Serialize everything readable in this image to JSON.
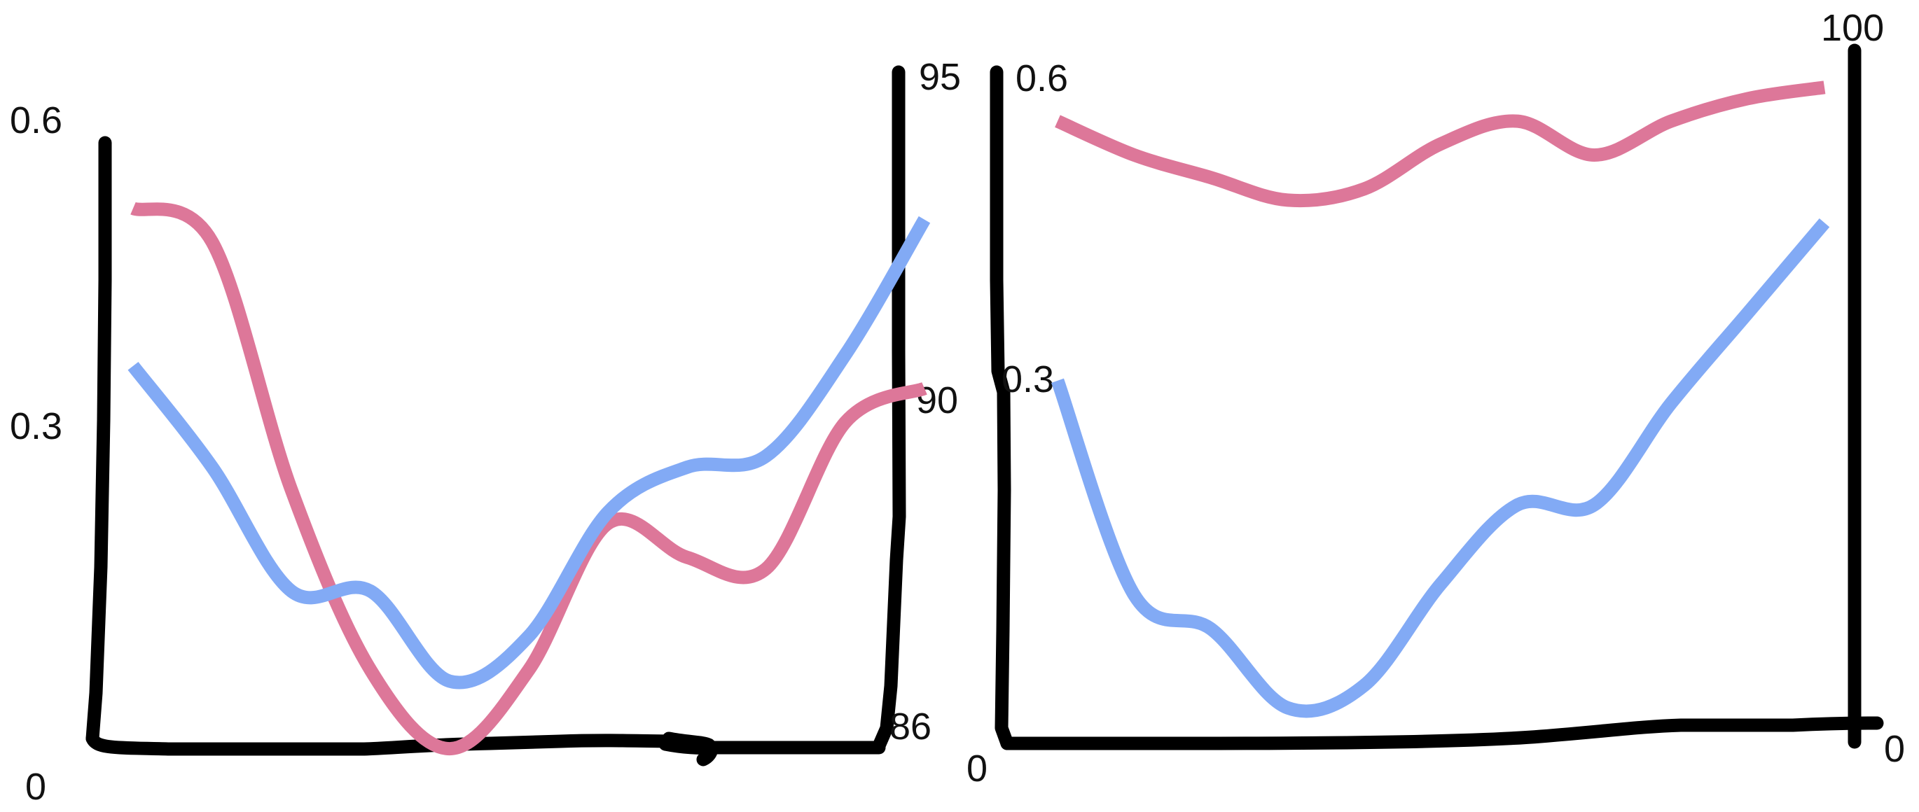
{
  "chart_data": [
    {
      "type": "line",
      "title": "",
      "style": "hand-drawn sketch, dual y-axes",
      "left_axis": {
        "ticks": [
          "0",
          "0.3",
          "0.6"
        ],
        "range": [
          0,
          0.6
        ]
      },
      "right_axis": {
        "ticks": [
          "86",
          "90",
          "95"
        ],
        "range": [
          86,
          95
        ]
      },
      "x": [
        0,
        1,
        2,
        3,
        4,
        5,
        6,
        7,
        8,
        9,
        10
      ],
      "grid": false,
      "legend": "none",
      "series": [
        {
          "color": "#dd7799",
          "axis": "left",
          "values": [
            0.53,
            0.5,
            0.28,
            0.12,
            0.05,
            0.12,
            0.25,
            0.22,
            0.21,
            0.34,
            0.37
          ]
        },
        {
          "color": "#82aaf5",
          "axis": "left",
          "values": [
            0.39,
            0.3,
            0.19,
            0.19,
            0.11,
            0.15,
            0.26,
            0.3,
            0.31,
            0.4,
            0.52
          ]
        }
      ]
    },
    {
      "type": "line",
      "title": "",
      "style": "hand-drawn sketch, dual y-axes",
      "left_axis": {
        "ticks": [
          "0",
          "0.3",
          "0.6"
        ],
        "range": [
          0,
          0.6
        ]
      },
      "right_axis": {
        "ticks": [
          "0",
          "100"
        ],
        "range": [
          0,
          100
        ]
      },
      "x": [
        0,
        1,
        2,
        3,
        4,
        5,
        6,
        7,
        8,
        9,
        10
      ],
      "grid": false,
      "legend": "none",
      "series": [
        {
          "color": "#dd7799",
          "axis": "left",
          "values": [
            0.59,
            0.56,
            0.54,
            0.52,
            0.53,
            0.57,
            0.59,
            0.56,
            0.59,
            0.61,
            0.62
          ]
        },
        {
          "color": "#82aaf5",
          "axis": "left",
          "values": [
            0.36,
            0.17,
            0.14,
            0.07,
            0.09,
            0.18,
            0.25,
            0.25,
            0.34,
            0.42,
            0.5
          ]
        }
      ]
    }
  ]
}
